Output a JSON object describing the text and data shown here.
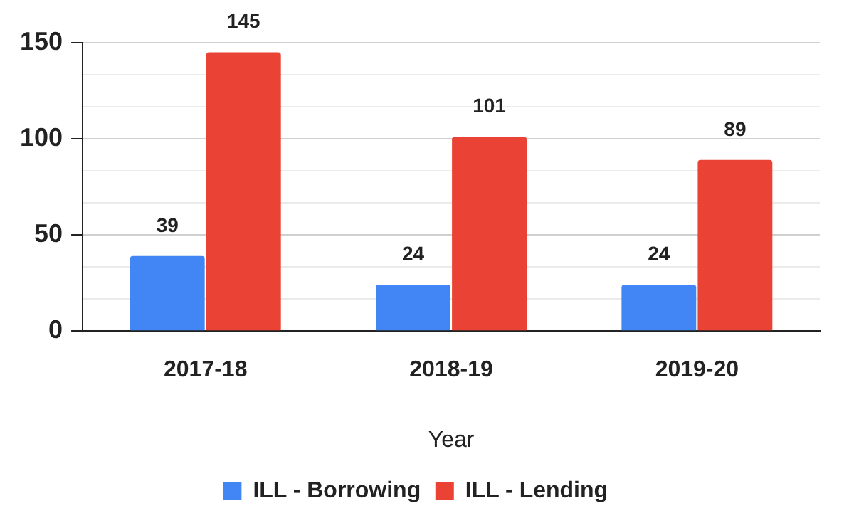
{
  "chart_data": {
    "type": "bar",
    "xlabel": "Year",
    "categories": [
      "2017-18",
      "2018-19",
      "2019-20"
    ],
    "series": [
      {
        "name": "ILL - Borrowing",
        "color": "#4285f4",
        "values": [
          39,
          24,
          24
        ]
      },
      {
        "name": "ILL - Lending",
        "color": "#ea4335",
        "values": [
          145,
          101,
          89
        ]
      }
    ],
    "ylim": [
      0,
      150
    ],
    "yticks": [
      0,
      {
        "value": 16.67,
        "label": null
      },
      {
        "value": 33.33,
        "label": null
      },
      50,
      {
        "value": 66.67,
        "label": null
      },
      {
        "value": 83.33,
        "label": null
      },
      100,
      {
        "value": 116.67,
        "label": null
      },
      {
        "value": 133.33,
        "label": null
      },
      150
    ],
    "grid": "y",
    "legend": "bottom",
    "data_labels": true
  }
}
